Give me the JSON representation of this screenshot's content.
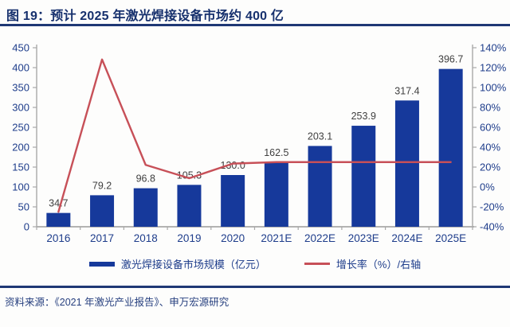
{
  "header": {
    "title": "图 19：预计 2025 年激光焊接设备市场约 400 亿"
  },
  "chart_data": {
    "type": "bar",
    "title": "预计 2025 年激光焊接设备市场约 400 亿",
    "categories": [
      "2016",
      "2017",
      "2018",
      "2019",
      "2020",
      "2021E",
      "2022E",
      "2023E",
      "2024E",
      "2025E"
    ],
    "series": [
      {
        "name": "激光焊接设备市场规模（亿元）",
        "type": "bar",
        "axis": "left",
        "values": [
          34.7,
          79.2,
          96.8,
          105.3,
          130.0,
          162.5,
          203.1,
          253.9,
          317.4,
          396.7
        ],
        "data_labels": [
          "34.7",
          "79.2",
          "96.8",
          "105.3",
          "130.0",
          "162.5",
          "203.1",
          "253.9",
          "317.4",
          "396.7"
        ],
        "color": "#16399b"
      },
      {
        "name": "增长率（%）/右轴",
        "type": "line",
        "axis": "right",
        "values": [
          -25.0,
          128.2,
          22.2,
          8.8,
          23.5,
          25.0,
          25.0,
          25.0,
          25.0,
          25.0
        ],
        "color": "#c75058"
      }
    ],
    "left_axis": {
      "min": 0,
      "max": 450,
      "step": 50,
      "tick_labels": [
        "0",
        "50",
        "100",
        "150",
        "200",
        "250",
        "300",
        "350",
        "400",
        "450"
      ]
    },
    "right_axis": {
      "min": -40,
      "max": 140,
      "step": 20,
      "tick_labels": [
        "-40%",
        "-20%",
        "0%",
        "20%",
        "40%",
        "60%",
        "80%",
        "100%",
        "120%",
        "140%"
      ]
    },
    "grid": false,
    "legend_position": "bottom",
    "colors": {
      "bar": "#16399b",
      "line": "#c75058",
      "axis_line": "#a8a8a8",
      "tick_text": "#1e3d8b",
      "data_label": "#3f3f3f"
    }
  },
  "legend": {
    "items": [
      {
        "label": "激光焊接设备市场规模（亿元）",
        "color": "#16399b",
        "marker": "bar"
      },
      {
        "label": "增长率（%）/右轴",
        "color": "#c75058",
        "marker": "line"
      }
    ]
  },
  "footer": {
    "source": "资料来源：《2021 年激光产业报告》、申万宏源研究"
  }
}
